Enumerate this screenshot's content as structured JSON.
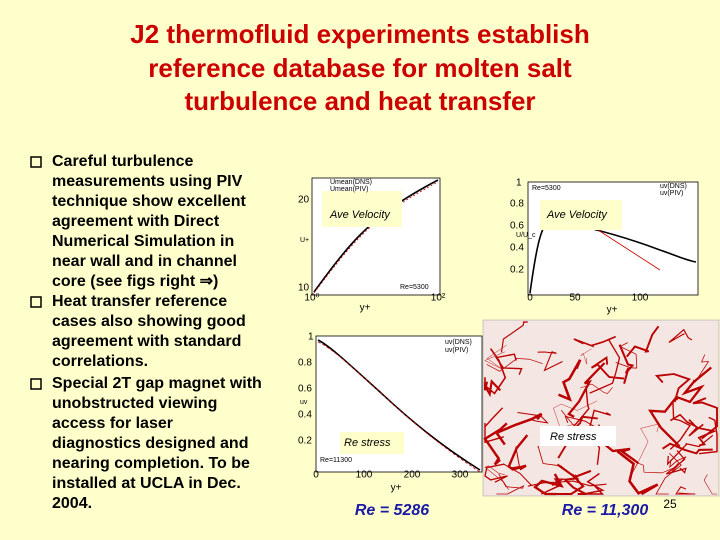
{
  "title": {
    "lines": [
      "J2 thermofluid experiments establish",
      "reference database for molten salt",
      "turbulence and heat transfer"
    ]
  },
  "bullets": [
    {
      "lines": [
        "Careful turbulence",
        "measurements using PIV",
        "technique show excellent",
        "agreement with Direct",
        "Numerical Simulation in",
        "near wall and in channel",
        "core  (see figs right ⇒)"
      ]
    },
    {
      "lines": [
        "Heat transfer reference",
        "cases also showing good",
        "agreement with standard",
        "correlations."
      ]
    },
    {
      "lines": [
        "Special 2T gap magnet with",
        "unobstructed viewing",
        "access for laser",
        "diagnostics designed and",
        "nearing completion. To be",
        "installed at UCLA in Dec.",
        "2004."
      ]
    }
  ],
  "figures": [
    {
      "caption": "Ave Velocity",
      "yticks": [
        "20",
        "10"
      ],
      "xticks": [
        "10⁰",
        "10²"
      ],
      "xlabel": "y+",
      "ylabel": "U+",
      "legend": [
        "Umean(DNS)",
        "Umean(PIV)"
      ],
      "note": "Re=5300"
    },
    {
      "caption": "Ave Velocity",
      "yticks": [
        "1",
        "0.8",
        "0.6",
        "0.4",
        "0.2"
      ],
      "xticks": [
        "0",
        "50",
        "100"
      ],
      "xlabel": "y+",
      "ylabel": "U/U_c",
      "legend": [
        "uv(DNS)",
        "uv(PIV)"
      ],
      "note": "Re=5300"
    },
    {
      "caption": "Re stress",
      "yticks": [
        "1",
        "0.8",
        "0.6",
        "0.4",
        "0.2"
      ],
      "xticks": [
        "0",
        "100",
        "200",
        "300"
      ],
      "xlabel": "y+",
      "ylabel": "uv",
      "legend": [
        "uv(DNS)",
        "uv(PIV)"
      ],
      "note": "Re=11300"
    },
    {
      "caption": "Re stress"
    }
  ],
  "reynolds": [
    "Re = 5286",
    "Re = 11,300"
  ],
  "page_number": "25"
}
